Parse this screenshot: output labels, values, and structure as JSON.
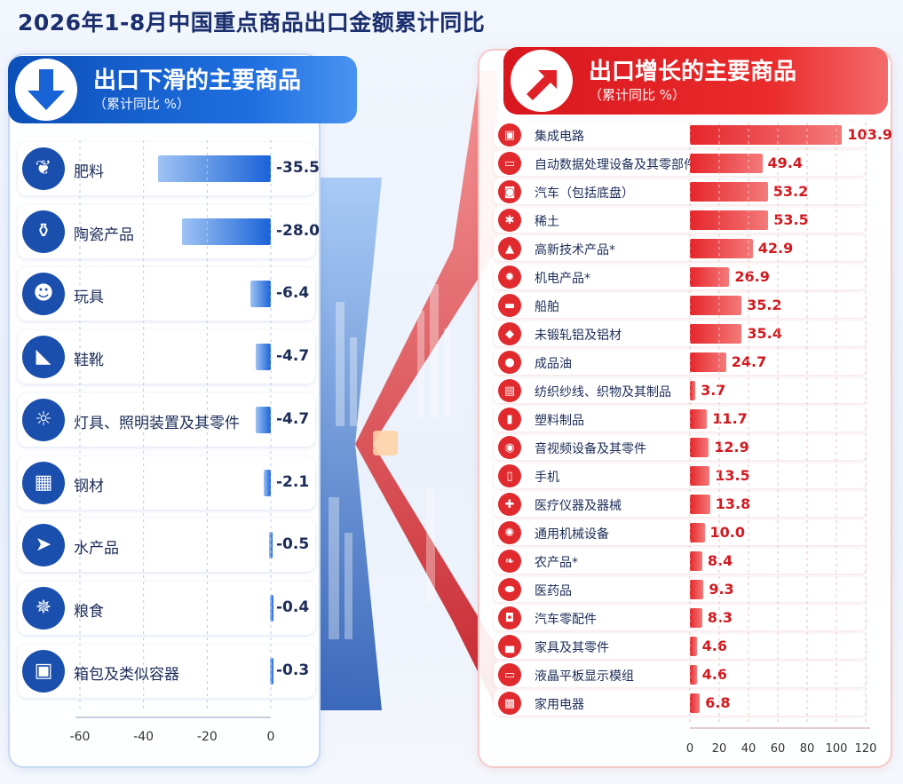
{
  "title": "2026年1-8月中国重点商品出口金额累计同比",
  "left_header": {
    "title": "出口下滑的主要商品",
    "subtitle": "（累计同比 %）"
  },
  "right_header": {
    "title": "出口增长的主要商品",
    "subtitle": "（累计同比 %）"
  },
  "colors": {
    "decline": "#1a63d8",
    "growth": "#e5262b",
    "title": "#1b2f6e"
  },
  "chart_data": [
    {
      "type": "bar",
      "orientation": "horizontal",
      "categories": [
        "肥料",
        "陶瓷产品",
        "玩具",
        "鞋靴",
        "灯具、照明装置及其零件",
        "钢材",
        "水产品",
        "粮食",
        "箱包及类似容器"
      ],
      "icons": [
        "sprout-icon",
        "vase-icon",
        "teddy-bear-icon",
        "shoe-icon",
        "bulb-icon",
        "steel-icon",
        "fish-icon",
        "wheat-icon",
        "bag-icon"
      ],
      "values": [
        -35.5,
        -28.0,
        -6.4,
        -4.7,
        -4.7,
        -2.1,
        -0.5,
        -0.4,
        -0.3
      ],
      "value_labels": [
        "-35.5",
        "-28.0",
        "-6.4",
        "-4.7",
        "-4.7",
        "-2.1",
        "-0.5",
        "-0.4",
        "-0.3"
      ],
      "xlim": [
        -60,
        0
      ],
      "xticks": [
        -60,
        -40,
        -20,
        0
      ],
      "xtick_labels": [
        "-60",
        "-40",
        "-20",
        "0"
      ],
      "grid": true
    },
    {
      "type": "bar",
      "orientation": "horizontal",
      "categories": [
        "集成电路",
        "自动数据处理设备及其零部件",
        "汽车（包括底盘）",
        "稀土",
        "高新技术产品*",
        "机电产品*",
        "船舶",
        "未锻轧铝及铝材",
        "成品油",
        "纺织纱线、织物及其制品",
        "塑料制品",
        "音视频设备及其零件",
        "手机",
        "医疗仪器及器械",
        "通用机械设备",
        "农产品*",
        "医药品",
        "汽车零配件",
        "家具及其零件",
        "液晶平板显示模组",
        "家用电器"
      ],
      "icons": [
        "chip-icon",
        "monitor-icon",
        "car-icon",
        "rare-earth-icon",
        "flask-icon",
        "gear-icon",
        "ship-icon",
        "aluminum-icon",
        "oil-drop-icon",
        "textile-icon",
        "bottle-icon",
        "speaker-icon",
        "phone-icon",
        "medical-icon",
        "machine-gear-icon",
        "leaf-icon",
        "pill-icon",
        "car-part-icon",
        "sofa-icon",
        "display-icon",
        "appliance-icon"
      ],
      "values": [
        103.9,
        49.4,
        53.2,
        53.5,
        42.9,
        26.9,
        35.2,
        35.4,
        24.7,
        3.7,
        11.7,
        12.9,
        13.5,
        13.8,
        10.0,
        8.4,
        9.3,
        8.3,
        4.6,
        4.6,
        6.8
      ],
      "value_labels": [
        "103.9",
        "49.4",
        "53.2",
        "53.5",
        "42.9",
        "26.9",
        "35.2",
        "35.4",
        "24.7",
        "3.7",
        "11.7",
        "12.9",
        "13.5",
        "13.8",
        "10.0",
        "8.4",
        "9.3",
        "8.3",
        "4.6",
        "4.6",
        "6.8"
      ],
      "xlim": [
        0,
        120
      ],
      "xticks": [
        0,
        20,
        40,
        60,
        80,
        100,
        120
      ],
      "xtick_labels": [
        "0",
        "20",
        "40",
        "60",
        "80",
        "100",
        "120"
      ],
      "grid": true
    }
  ]
}
